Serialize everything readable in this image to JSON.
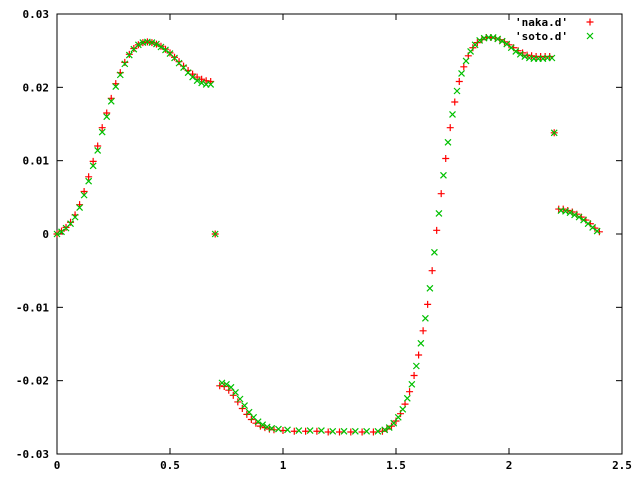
{
  "chart_data": {
    "type": "scatter",
    "title": "",
    "xlabel": "",
    "ylabel": "",
    "xlim": [
      0,
      2.5
    ],
    "ylim": [
      -0.03,
      0.03
    ],
    "x_ticks": [
      0,
      0.5,
      1,
      1.5,
      2,
      2.5
    ],
    "x_tick_labels": [
      "0",
      "0.5",
      "1",
      "1.5",
      "2",
      "2.5"
    ],
    "y_ticks": [
      -0.03,
      -0.02,
      -0.01,
      0,
      0.01,
      0.02,
      0.03
    ],
    "y_tick_labels": [
      "-0.03",
      "-0.02",
      "-0.01",
      "0",
      "0.01",
      "0.02",
      "0.03"
    ],
    "grid": false,
    "legend_position": "top-right",
    "series": [
      {
        "name": "'naka.d'",
        "marker": "plus",
        "color": "#ff0000",
        "points": [
          [
            0.0,
            0.0
          ],
          [
            0.02,
            0.0004
          ],
          [
            0.04,
            0.0009
          ],
          [
            0.06,
            0.0016
          ],
          [
            0.08,
            0.0026
          ],
          [
            0.1,
            0.004
          ],
          [
            0.12,
            0.0058
          ],
          [
            0.14,
            0.0078
          ],
          [
            0.16,
            0.0099
          ],
          [
            0.18,
            0.012
          ],
          [
            0.2,
            0.0145
          ],
          [
            0.22,
            0.0165
          ],
          [
            0.24,
            0.0185
          ],
          [
            0.26,
            0.0205
          ],
          [
            0.28,
            0.022
          ],
          [
            0.3,
            0.0234
          ],
          [
            0.32,
            0.0245
          ],
          [
            0.34,
            0.0253
          ],
          [
            0.36,
            0.0258
          ],
          [
            0.38,
            0.0261
          ],
          [
            0.4,
            0.0262
          ],
          [
            0.42,
            0.0261
          ],
          [
            0.44,
            0.0259
          ],
          [
            0.46,
            0.0256
          ],
          [
            0.48,
            0.0252
          ],
          [
            0.5,
            0.0247
          ],
          [
            0.52,
            0.0241
          ],
          [
            0.54,
            0.0235
          ],
          [
            0.56,
            0.0229
          ],
          [
            0.58,
            0.0223
          ],
          [
            0.6,
            0.0218
          ],
          [
            0.62,
            0.0214
          ],
          [
            0.64,
            0.0211
          ],
          [
            0.66,
            0.0209
          ],
          [
            0.68,
            0.0208
          ],
          [
            0.7,
            0.0
          ],
          [
            0.72,
            -0.0207
          ],
          [
            0.74,
            -0.0208
          ],
          [
            0.76,
            -0.0213
          ],
          [
            0.78,
            -0.022
          ],
          [
            0.8,
            -0.0229
          ],
          [
            0.82,
            -0.0238
          ],
          [
            0.84,
            -0.0246
          ],
          [
            0.86,
            -0.0253
          ],
          [
            0.88,
            -0.0258
          ],
          [
            0.9,
            -0.0262
          ],
          [
            0.92,
            -0.0264
          ],
          [
            0.94,
            -0.0266
          ],
          [
            0.96,
            -0.0267
          ],
          [
            1.0,
            -0.0268
          ],
          [
            1.05,
            -0.0269
          ],
          [
            1.1,
            -0.0269
          ],
          [
            1.15,
            -0.0269
          ],
          [
            1.2,
            -0.027
          ],
          [
            1.25,
            -0.027
          ],
          [
            1.3,
            -0.027
          ],
          [
            1.35,
            -0.027
          ],
          [
            1.4,
            -0.027
          ],
          [
            1.44,
            -0.0269
          ],
          [
            1.46,
            -0.0266
          ],
          [
            1.48,
            -0.0262
          ],
          [
            1.5,
            -0.0255
          ],
          [
            1.52,
            -0.0245
          ],
          [
            1.54,
            -0.0232
          ],
          [
            1.56,
            -0.0215
          ],
          [
            1.58,
            -0.0193
          ],
          [
            1.6,
            -0.0165
          ],
          [
            1.62,
            -0.0132
          ],
          [
            1.64,
            -0.0096
          ],
          [
            1.66,
            -0.005
          ],
          [
            1.68,
            0.0005
          ],
          [
            1.7,
            0.0055
          ],
          [
            1.72,
            0.0103
          ],
          [
            1.74,
            0.0145
          ],
          [
            1.76,
            0.018
          ],
          [
            1.78,
            0.0208
          ],
          [
            1.8,
            0.0228
          ],
          [
            1.82,
            0.0243
          ],
          [
            1.84,
            0.0254
          ],
          [
            1.86,
            0.0261
          ],
          [
            1.88,
            0.0265
          ],
          [
            1.9,
            0.0268
          ],
          [
            1.92,
            0.0268
          ],
          [
            1.94,
            0.0267
          ],
          [
            1.96,
            0.0265
          ],
          [
            1.98,
            0.0262
          ],
          [
            2.0,
            0.0258
          ],
          [
            2.02,
            0.0254
          ],
          [
            2.04,
            0.025
          ],
          [
            2.06,
            0.0247
          ],
          [
            2.08,
            0.0244
          ],
          [
            2.1,
            0.0243
          ],
          [
            2.12,
            0.0242
          ],
          [
            2.14,
            0.0242
          ],
          [
            2.16,
            0.0242
          ],
          [
            2.18,
            0.0242
          ],
          [
            2.2,
            0.0138
          ],
          [
            2.22,
            0.0034
          ],
          [
            2.24,
            0.0034
          ],
          [
            2.26,
            0.0032
          ],
          [
            2.28,
            0.003
          ],
          [
            2.3,
            0.0027
          ],
          [
            2.32,
            0.0023
          ],
          [
            2.34,
            0.0019
          ],
          [
            2.36,
            0.0014
          ],
          [
            2.38,
            0.0008
          ],
          [
            2.4,
            0.0003
          ]
        ]
      },
      {
        "name": "'soto.d'",
        "marker": "cross",
        "color": "#00c000",
        "points": [
          [
            0.0,
            0.0
          ],
          [
            0.02,
            0.0003
          ],
          [
            0.04,
            0.0008
          ],
          [
            0.06,
            0.0014
          ],
          [
            0.08,
            0.0023
          ],
          [
            0.1,
            0.0036
          ],
          [
            0.12,
            0.0053
          ],
          [
            0.14,
            0.0072
          ],
          [
            0.16,
            0.0093
          ],
          [
            0.18,
            0.0114
          ],
          [
            0.2,
            0.0139
          ],
          [
            0.22,
            0.016
          ],
          [
            0.24,
            0.0181
          ],
          [
            0.26,
            0.0201
          ],
          [
            0.28,
            0.0217
          ],
          [
            0.3,
            0.0232
          ],
          [
            0.32,
            0.0244
          ],
          [
            0.34,
            0.0252
          ],
          [
            0.36,
            0.0258
          ],
          [
            0.38,
            0.0261
          ],
          [
            0.4,
            0.0262
          ],
          [
            0.42,
            0.0261
          ],
          [
            0.44,
            0.0259
          ],
          [
            0.46,
            0.0255
          ],
          [
            0.48,
            0.0251
          ],
          [
            0.5,
            0.0246
          ],
          [
            0.52,
            0.024
          ],
          [
            0.54,
            0.0233
          ],
          [
            0.56,
            0.0227
          ],
          [
            0.58,
            0.022
          ],
          [
            0.6,
            0.0214
          ],
          [
            0.62,
            0.0209
          ],
          [
            0.64,
            0.0206
          ],
          [
            0.66,
            0.0204
          ],
          [
            0.68,
            0.0204
          ],
          [
            0.7,
            0.0
          ],
          [
            0.73,
            -0.0203
          ],
          [
            0.75,
            -0.0205
          ],
          [
            0.77,
            -0.0209
          ],
          [
            0.79,
            -0.0216
          ],
          [
            0.81,
            -0.0225
          ],
          [
            0.83,
            -0.0234
          ],
          [
            0.85,
            -0.0243
          ],
          [
            0.87,
            -0.025
          ],
          [
            0.89,
            -0.0256
          ],
          [
            0.91,
            -0.026
          ],
          [
            0.93,
            -0.0263
          ],
          [
            0.95,
            -0.0265
          ],
          [
            0.98,
            -0.0266
          ],
          [
            1.02,
            -0.0267
          ],
          [
            1.07,
            -0.0268
          ],
          [
            1.12,
            -0.0268
          ],
          [
            1.17,
            -0.0268
          ],
          [
            1.22,
            -0.0269
          ],
          [
            1.27,
            -0.0269
          ],
          [
            1.32,
            -0.0269
          ],
          [
            1.37,
            -0.0269
          ],
          [
            1.42,
            -0.0269
          ],
          [
            1.45,
            -0.0267
          ],
          [
            1.47,
            -0.0264
          ],
          [
            1.49,
            -0.0258
          ],
          [
            1.51,
            -0.025
          ],
          [
            1.53,
            -0.0239
          ],
          [
            1.55,
            -0.0224
          ],
          [
            1.57,
            -0.0205
          ],
          [
            1.59,
            -0.018
          ],
          [
            1.61,
            -0.0149
          ],
          [
            1.63,
            -0.0115
          ],
          [
            1.65,
            -0.0074
          ],
          [
            1.67,
            -0.0025
          ],
          [
            1.69,
            0.0028
          ],
          [
            1.71,
            0.008
          ],
          [
            1.73,
            0.0125
          ],
          [
            1.75,
            0.0163
          ],
          [
            1.77,
            0.0195
          ],
          [
            1.79,
            0.0219
          ],
          [
            1.81,
            0.0236
          ],
          [
            1.83,
            0.0249
          ],
          [
            1.85,
            0.0258
          ],
          [
            1.87,
            0.0264
          ],
          [
            1.89,
            0.0267
          ],
          [
            1.91,
            0.0268
          ],
          [
            1.93,
            0.0268
          ],
          [
            1.95,
            0.0266
          ],
          [
            1.97,
            0.0263
          ],
          [
            1.99,
            0.0259
          ],
          [
            2.01,
            0.0254
          ],
          [
            2.03,
            0.0249
          ],
          [
            2.05,
            0.0245
          ],
          [
            2.07,
            0.0242
          ],
          [
            2.09,
            0.024
          ],
          [
            2.11,
            0.0239
          ],
          [
            2.13,
            0.0239
          ],
          [
            2.15,
            0.0239
          ],
          [
            2.17,
            0.024
          ],
          [
            2.19,
            0.024
          ],
          [
            2.2,
            0.0138
          ],
          [
            2.23,
            0.0032
          ],
          [
            2.25,
            0.0031
          ],
          [
            2.27,
            0.0029
          ],
          [
            2.29,
            0.0026
          ],
          [
            2.31,
            0.0023
          ],
          [
            2.33,
            0.0019
          ],
          [
            2.35,
            0.0014
          ],
          [
            2.37,
            0.0009
          ],
          [
            2.39,
            0.0004
          ]
        ]
      }
    ]
  }
}
